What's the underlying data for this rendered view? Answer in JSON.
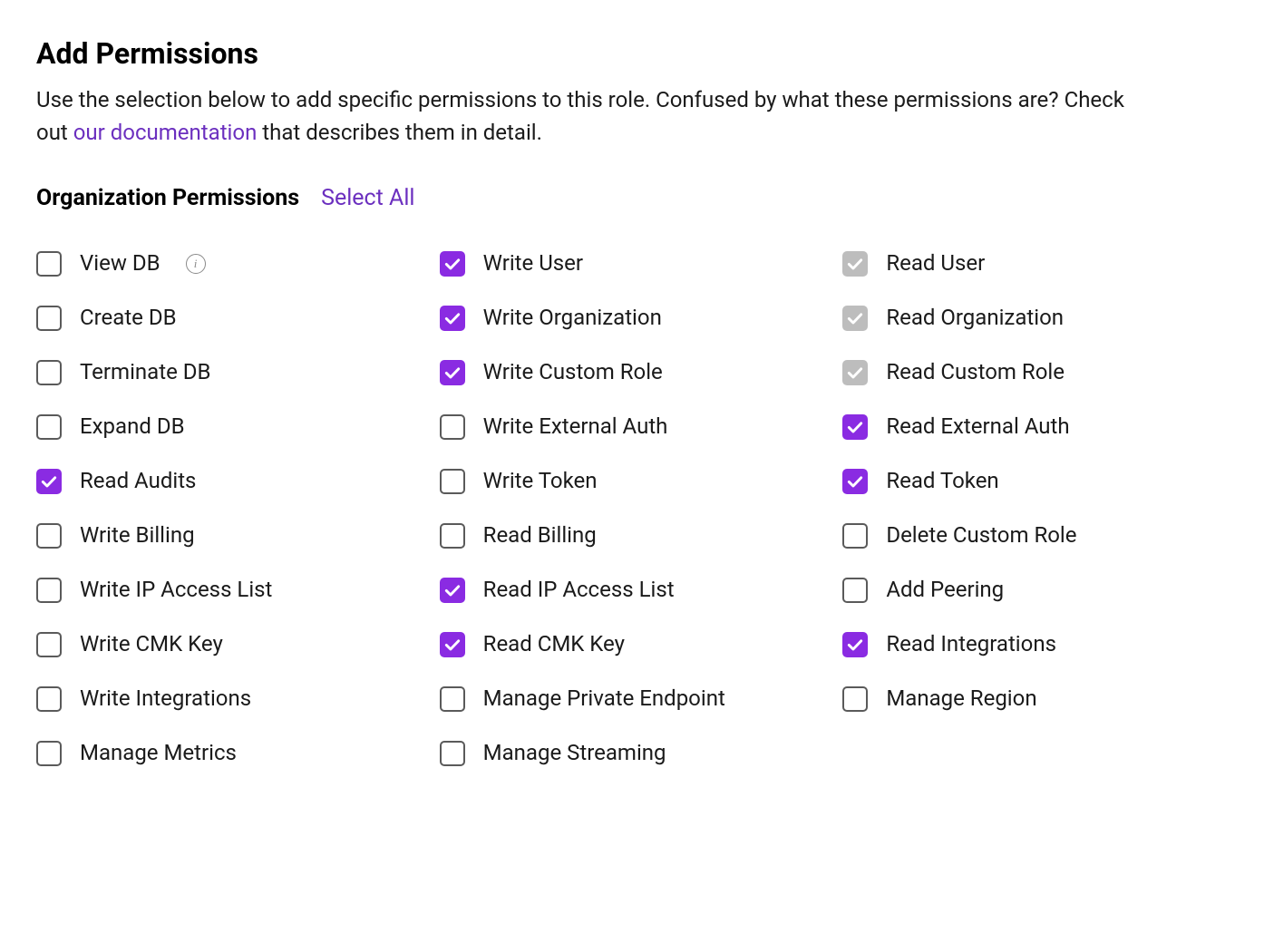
{
  "title": "Add Permissions",
  "description_pre": "Use the selection below to add specific permissions to this role. Confused by what these permissions are? Check out ",
  "description_link": "our documentation",
  "description_post": " that describes them in detail.",
  "section_title": "Organization Permissions",
  "select_all_label": "Select All",
  "colors": {
    "accent": "#8a2be2",
    "link": "#6b2fbf",
    "disabled_checkbox": "#bdbdbd",
    "text": "#1a1a1a",
    "border": "#5a5a5a"
  },
  "permissions": [
    {
      "label": "View DB",
      "state": "unchecked",
      "info": true,
      "slug": "view-db"
    },
    {
      "label": "Write User",
      "state": "checked",
      "info": false,
      "slug": "write-user"
    },
    {
      "label": "Read User",
      "state": "checked-disabled",
      "info": false,
      "slug": "read-user"
    },
    {
      "label": "Create DB",
      "state": "unchecked",
      "info": false,
      "slug": "create-db"
    },
    {
      "label": "Write Organization",
      "state": "checked",
      "info": false,
      "slug": "write-organization"
    },
    {
      "label": "Read Organization",
      "state": "checked-disabled",
      "info": false,
      "slug": "read-organization"
    },
    {
      "label": "Terminate DB",
      "state": "unchecked",
      "info": false,
      "slug": "terminate-db"
    },
    {
      "label": "Write Custom Role",
      "state": "checked",
      "info": false,
      "slug": "write-custom-role"
    },
    {
      "label": "Read Custom Role",
      "state": "checked-disabled",
      "info": false,
      "slug": "read-custom-role"
    },
    {
      "label": "Expand DB",
      "state": "unchecked",
      "info": false,
      "slug": "expand-db"
    },
    {
      "label": "Write External Auth",
      "state": "unchecked",
      "info": false,
      "slug": "write-external-auth"
    },
    {
      "label": "Read External Auth",
      "state": "checked",
      "info": false,
      "slug": "read-external-auth"
    },
    {
      "label": "Read Audits",
      "state": "checked",
      "info": false,
      "slug": "read-audits"
    },
    {
      "label": "Write Token",
      "state": "unchecked",
      "info": false,
      "slug": "write-token"
    },
    {
      "label": "Read Token",
      "state": "checked",
      "info": false,
      "slug": "read-token"
    },
    {
      "label": "Write Billing",
      "state": "unchecked",
      "info": false,
      "slug": "write-billing"
    },
    {
      "label": "Read Billing",
      "state": "unchecked",
      "info": false,
      "slug": "read-billing"
    },
    {
      "label": "Delete Custom Role",
      "state": "unchecked",
      "info": false,
      "slug": "delete-custom-role"
    },
    {
      "label": "Write IP Access List",
      "state": "unchecked",
      "info": false,
      "slug": "write-ip-access-list"
    },
    {
      "label": "Read IP Access List",
      "state": "checked",
      "info": false,
      "slug": "read-ip-access-list"
    },
    {
      "label": "Add Peering",
      "state": "unchecked",
      "info": false,
      "slug": "add-peering"
    },
    {
      "label": "Write CMK Key",
      "state": "unchecked",
      "info": false,
      "slug": "write-cmk-key"
    },
    {
      "label": "Read CMK Key",
      "state": "checked",
      "info": false,
      "slug": "read-cmk-key"
    },
    {
      "label": "Read Integrations",
      "state": "checked",
      "info": false,
      "slug": "read-integrations"
    },
    {
      "label": "Write Integrations",
      "state": "unchecked",
      "info": false,
      "slug": "write-integrations"
    },
    {
      "label": "Manage Private Endpoint",
      "state": "unchecked",
      "info": false,
      "slug": "manage-private-endpoint"
    },
    {
      "label": "Manage Region",
      "state": "unchecked",
      "info": false,
      "slug": "manage-region"
    },
    {
      "label": "Manage Metrics",
      "state": "unchecked",
      "info": false,
      "slug": "manage-metrics"
    },
    {
      "label": "Manage Streaming",
      "state": "unchecked",
      "info": false,
      "slug": "manage-streaming"
    }
  ]
}
